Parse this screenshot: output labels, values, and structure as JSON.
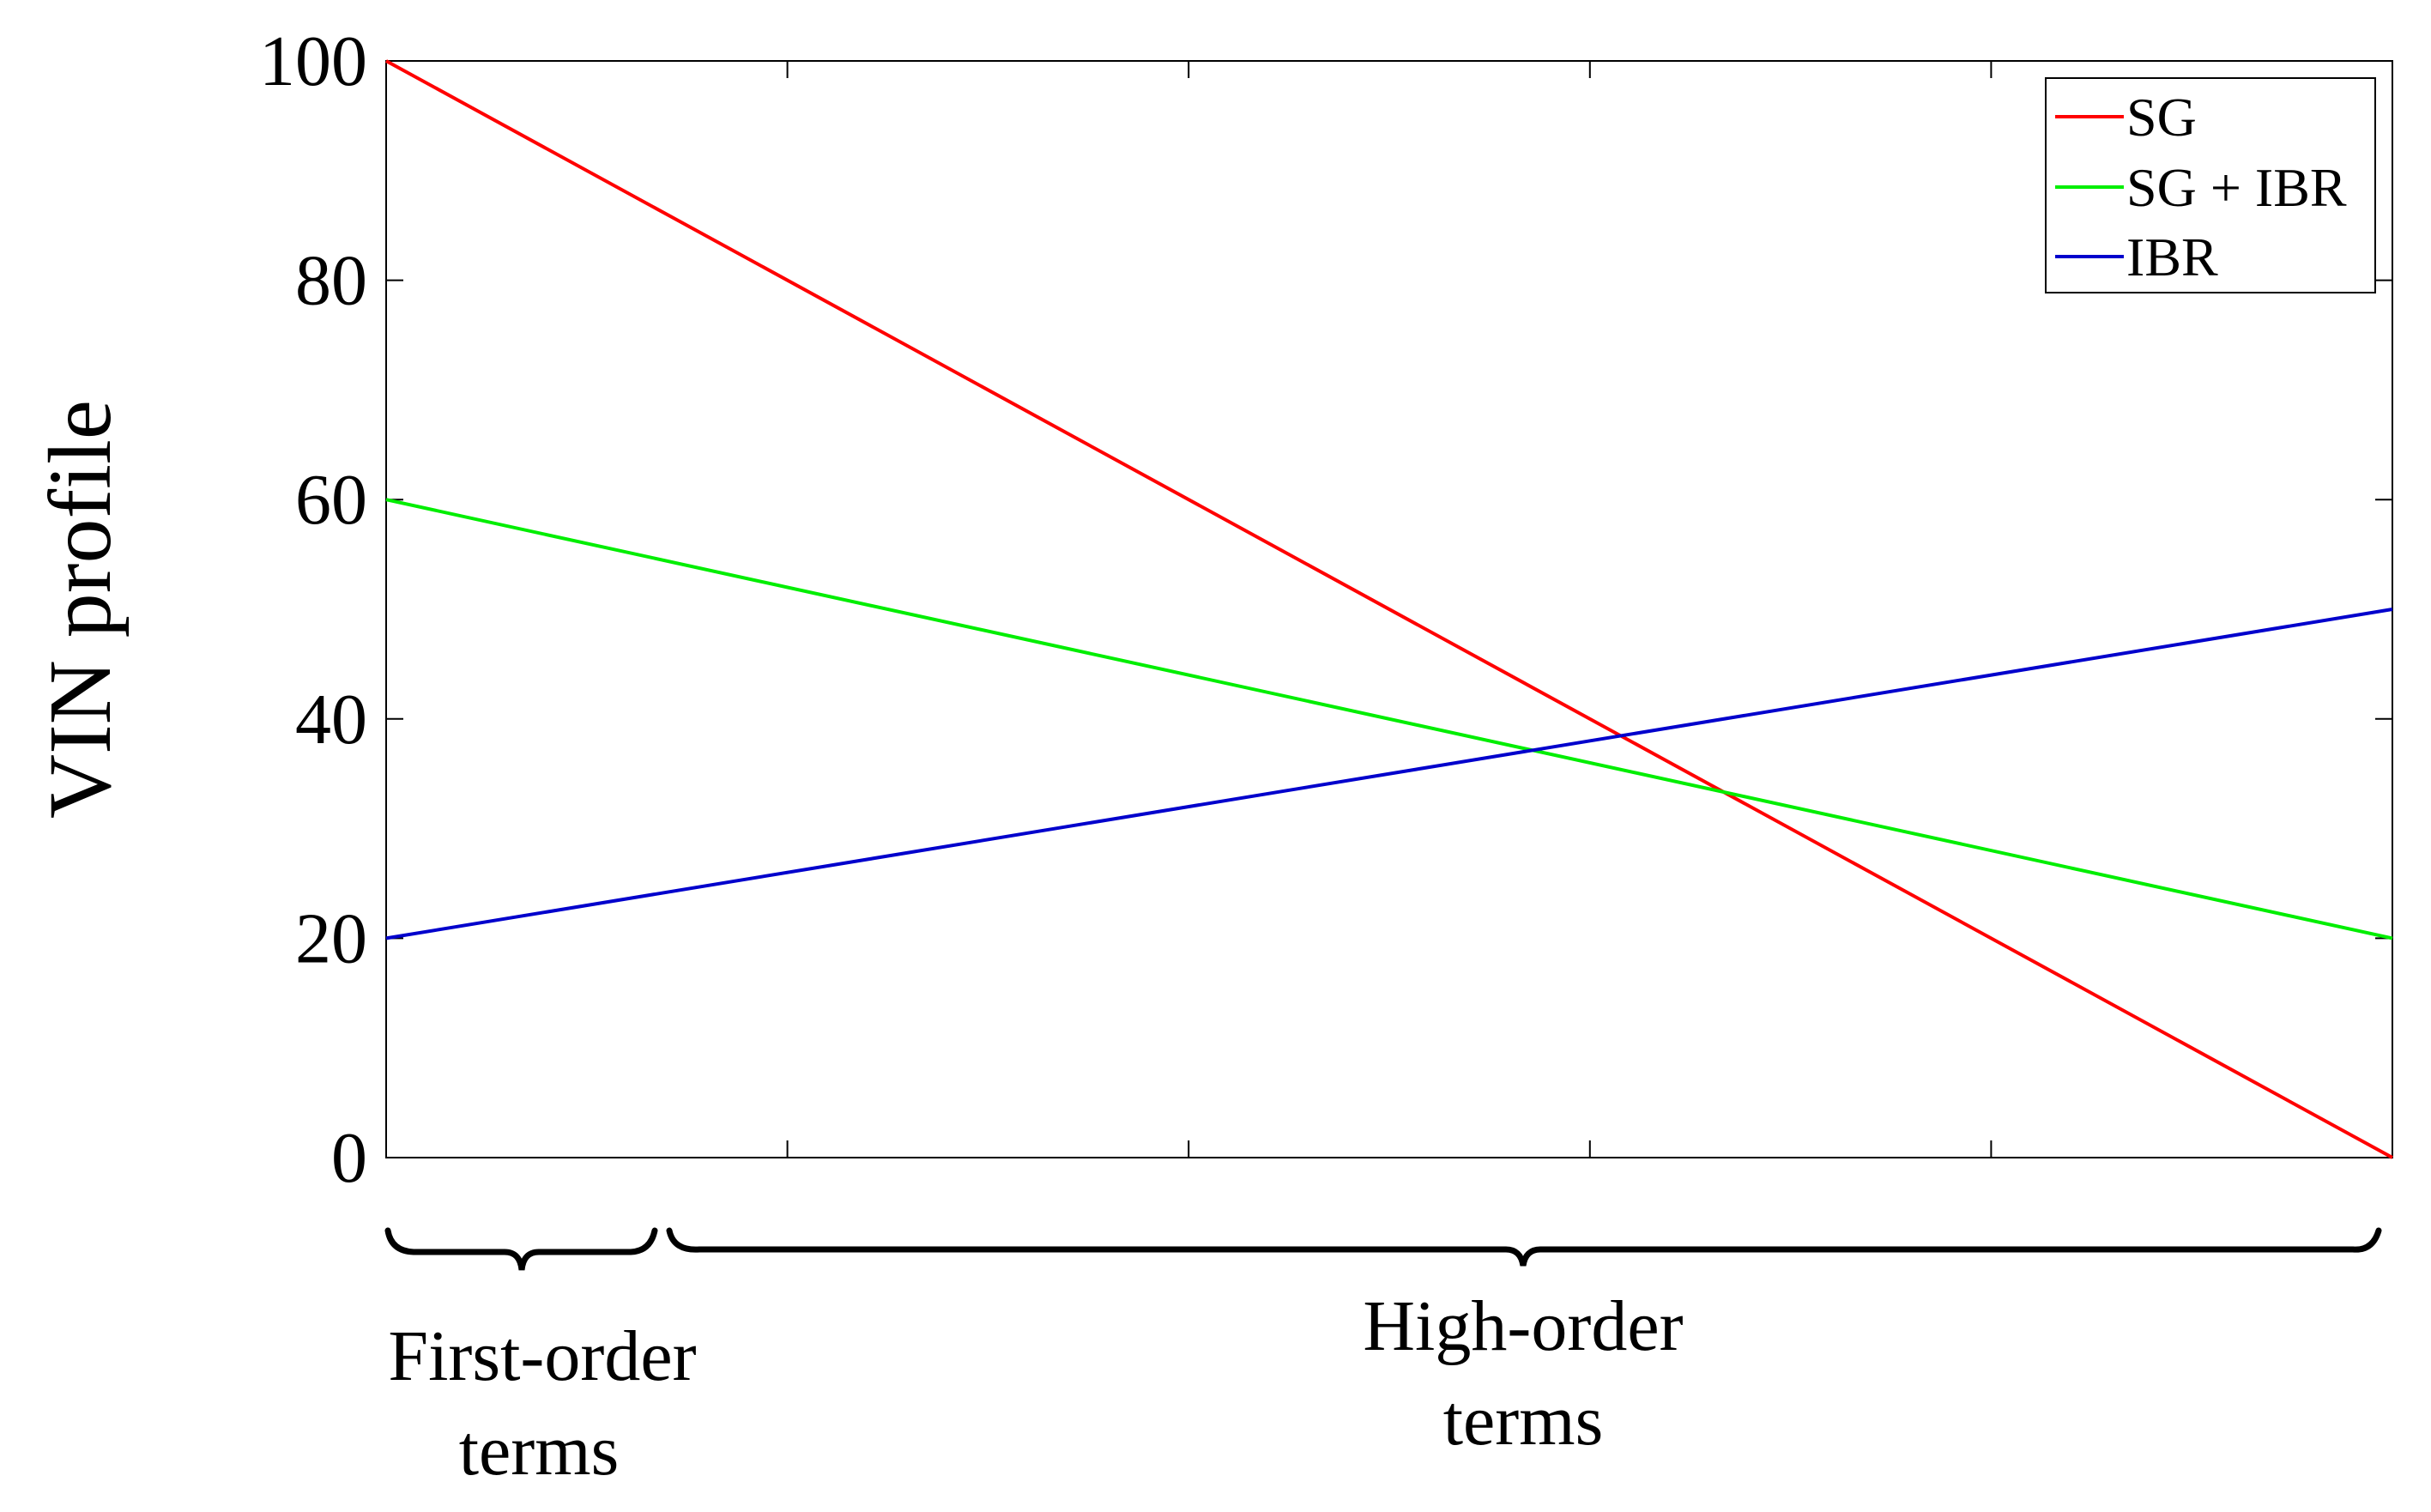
{
  "chart_data": {
    "type": "line",
    "title": "",
    "xlabel": "",
    "ylabel": "VIN profile",
    "xlim": [
      0,
      5
    ],
    "ylim": [
      0,
      100
    ],
    "yticks": [
      0,
      20,
      40,
      60,
      80,
      100
    ],
    "ytick_labels": [
      "0",
      "20",
      "40",
      "60",
      "80",
      "100"
    ],
    "xticks": [
      0,
      1,
      2,
      3,
      4,
      5
    ],
    "xtick_labels_shown": false,
    "grid": false,
    "legend_position": "top-right",
    "series": [
      {
        "name": "SG",
        "color": "#ff0000",
        "x": [
          0,
          5
        ],
        "y": [
          100,
          0
        ]
      },
      {
        "name": "SG + IBR",
        "color": "#00ee00",
        "x": [
          0,
          5
        ],
        "y": [
          60,
          20
        ]
      },
      {
        "name": "IBR",
        "color": "#0000cc",
        "x": [
          0,
          5
        ],
        "y": [
          20,
          50
        ]
      }
    ],
    "annotations": [
      {
        "text_line1": "First-order",
        "text_line2": "terms",
        "x_range": [
          0,
          0.667
        ]
      },
      {
        "text_line1": "High-order",
        "text_line2": "terms",
        "x_range": [
          0.7,
          5
        ]
      }
    ]
  }
}
